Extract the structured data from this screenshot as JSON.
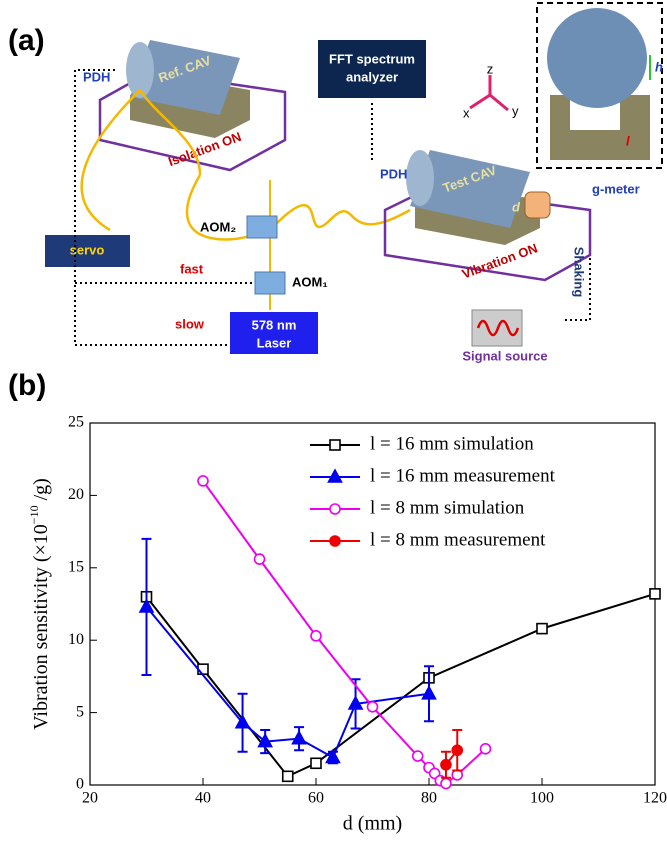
{
  "panel_labels": [
    "(a)",
    "(b)"
  ],
  "diagram": {
    "pdh_ref": "PDH",
    "ref_cav": "Ref. CAV",
    "isolation": "Isolation ON",
    "fft": [
      "FFT spectrum",
      "analyzer"
    ],
    "axis_z": "z",
    "axis_x": "x",
    "axis_y": "y",
    "g_meter": "g-meter",
    "h": "h",
    "l": "l",
    "aom2": "AOM₂",
    "aom1": "AOM₁",
    "servo": "servo",
    "fast": "fast",
    "slow": "slow",
    "laser": [
      "578 nm",
      "Laser"
    ],
    "pdh_test": "PDH",
    "test_cav": "Test CAV",
    "d": "d",
    "vibration": "Vibration ON",
    "shaking": "Shaking",
    "signal": "Signal source"
  },
  "chart_data": {
    "type": "line",
    "xlabel": "d (mm)",
    "ylabel": {
      "text": "Vibration sensitivity (×10",
      "sup": "−10",
      "suffix": " /g)"
    },
    "xlim": [
      20,
      120
    ],
    "xticks": [
      20,
      40,
      60,
      80,
      100,
      120
    ],
    "ylim": [
      0,
      25
    ],
    "yticks": [
      0,
      5,
      10,
      15,
      20,
      25
    ],
    "legend": "upper right",
    "series": [
      {
        "name": "l = 16 mm simulation",
        "color": "#000000",
        "marker": "square",
        "filled": false,
        "x": [
          30,
          40,
          55,
          60,
          80,
          100,
          120
        ],
        "values": [
          13.0,
          8.0,
          0.6,
          1.5,
          7.4,
          10.8,
          13.2
        ]
      },
      {
        "name": "l = 16 mm measurement",
        "color": "#0000ee",
        "marker": "triangle",
        "filled": true,
        "x": [
          30,
          47,
          51,
          57,
          63,
          67,
          80
        ],
        "values": [
          12.3,
          4.3,
          3.0,
          3.2,
          1.9,
          5.6,
          6.3
        ],
        "errors": [
          4.7,
          2.0,
          0.8,
          0.8,
          0.4,
          1.7,
          1.9
        ]
      },
      {
        "name": "l = 8 mm simulation",
        "color": "#ee00ee",
        "marker": "circle",
        "filled": false,
        "x": [
          40,
          50,
          60,
          70,
          78,
          80,
          81,
          82,
          83,
          85,
          90
        ],
        "values": [
          21.0,
          15.6,
          10.3,
          5.4,
          2.0,
          1.2,
          0.8,
          0.3,
          0.1,
          0.7,
          2.5
        ]
      },
      {
        "name": "l = 8 mm measurement",
        "color": "#ee0000",
        "marker": "circle",
        "filled": true,
        "x": [
          83,
          85
        ],
        "values": [
          1.4,
          2.4
        ],
        "errors": [
          0.9,
          1.4
        ]
      }
    ]
  }
}
